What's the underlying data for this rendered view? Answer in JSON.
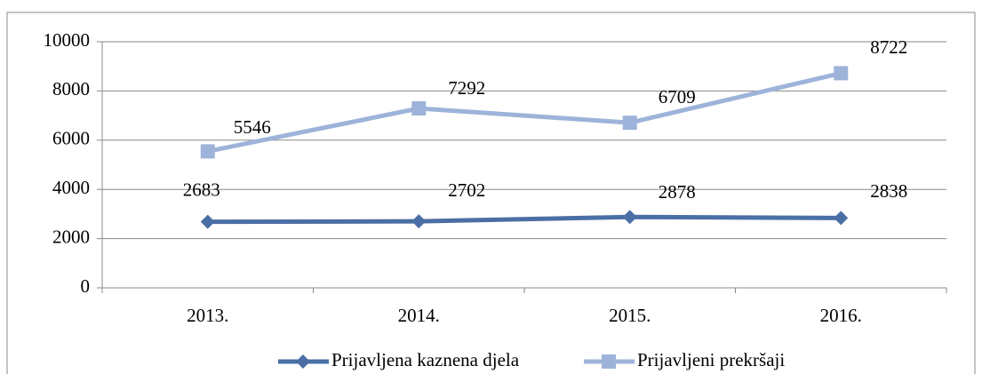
{
  "chart_data": {
    "type": "line",
    "categories": [
      "2013.",
      "2014.",
      "2015.",
      "2016."
    ],
    "series": [
      {
        "name": "Prijavljena kaznena djela",
        "color": "#4a6fa5",
        "marker": "diamond",
        "values": [
          2683,
          2702,
          2878,
          2838
        ]
      },
      {
        "name": "Prijavljeni prekršaji",
        "color": "#9db3d9",
        "marker": "square",
        "values": [
          5546,
          7292,
          6709,
          8722
        ]
      }
    ],
    "ylim": [
      0,
      10000
    ],
    "yticks": [
      0,
      2000,
      4000,
      6000,
      8000,
      10000
    ],
    "grid": true,
    "legend": "bottom"
  }
}
